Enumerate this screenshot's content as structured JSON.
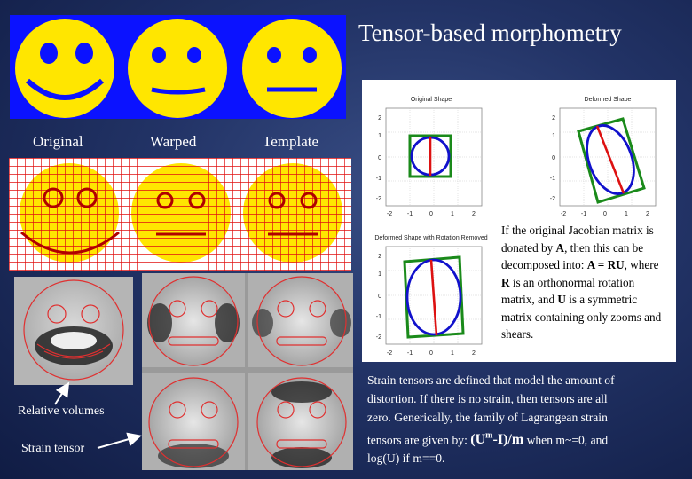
{
  "slide": {
    "title": "Tensor-based morphometry",
    "labels": {
      "original": "Original",
      "warped": "Warped",
      "template": "Template",
      "relative_volumes": "Relative volumes",
      "strain_tensor": "Strain tensor"
    },
    "panel": {
      "plot_titles": [
        "Original Shape",
        "Deformed Shape",
        "Deformed Shape with Rotation Removed"
      ],
      "tick_labels": [
        "-2",
        "-1",
        "0",
        "1",
        "2"
      ],
      "text_parts": [
        "If the original Jacobian matrix is donated by ",
        "A",
        ", then this can be decomposed into: ",
        "A = RU",
        ", where ",
        "R",
        " is an orthonormal rotation matrix, and ",
        "U",
        " is a symmetric matrix containing only zooms and shears."
      ]
    },
    "bottom_text": {
      "line1": "Strain tensors are defined that model the amount of",
      "line2": "distortion. If  there is no strain, then tensors are all",
      "line3": "zero.  Generically,  the family of Lagrangean strain",
      "line4_pre": "tensors are given by: ",
      "formula": "(U",
      "formula_sup": "m",
      "formula_post": "-I)/m",
      "line4_post": " when m~=0,   and",
      "line5": "log(U)  if  m==0."
    },
    "colors": {
      "face_yellow": "#ffe600",
      "smiley_bg": "#0b12ff",
      "grid_red": "#e01010",
      "grid_blue": "#2222ff"
    }
  }
}
